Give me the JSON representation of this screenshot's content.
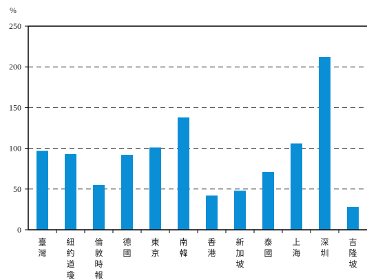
{
  "chart_data": {
    "type": "bar",
    "unit_label": "%",
    "ylim": [
      0,
      250
    ],
    "yticks": [
      "0",
      "50",
      "100",
      "150",
      "200",
      "250"
    ],
    "grid": "dashed-horizontal",
    "bar_color": "#0a8fd6",
    "categories": [
      "臺灣",
      "紐約道瓊",
      "倫敦時報",
      "德國",
      "東京",
      "南韓",
      "香港",
      "新加坡",
      "泰國",
      "上海",
      "深圳",
      "吉隆坡"
    ],
    "values": [
      97,
      93,
      55,
      92,
      101,
      138,
      42,
      48,
      71,
      106,
      212,
      28
    ]
  }
}
